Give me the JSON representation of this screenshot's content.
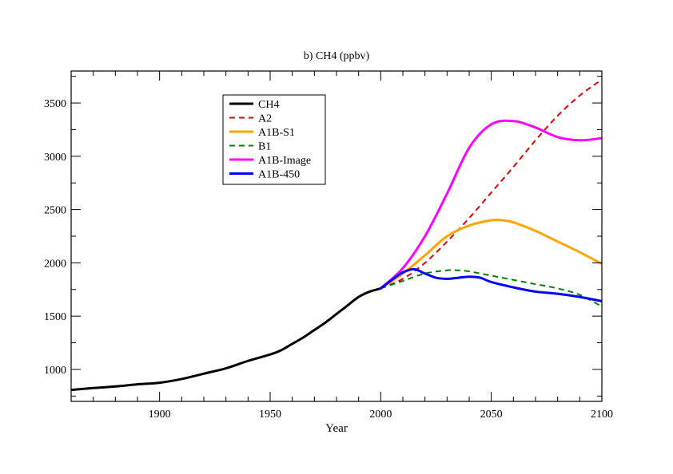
{
  "chart_data": {
    "type": "line",
    "title": "b) CH4 (ppbv)",
    "xlabel": "Year",
    "ylabel": "",
    "xlim": [
      1860,
      2100
    ],
    "ylim": [
      700,
      3800
    ],
    "xticks": [
      1900,
      1950,
      2000,
      2050,
      2100
    ],
    "yticks": [
      1000,
      1500,
      2000,
      2500,
      3000,
      3500
    ],
    "grid": false,
    "legend_position": "top-left",
    "series": [
      {
        "name": "CH4",
        "color": "#000000",
        "dash": "solid",
        "width": 3,
        "x": [
          1860,
          1870,
          1880,
          1890,
          1900,
          1910,
          1920,
          1930,
          1940,
          1950,
          1955,
          1960,
          1965,
          1970,
          1975,
          1980,
          1985,
          1990,
          1995,
          2000
        ],
        "y": [
          808,
          825,
          840,
          860,
          875,
          910,
          960,
          1010,
          1080,
          1140,
          1180,
          1240,
          1300,
          1370,
          1440,
          1520,
          1600,
          1680,
          1730,
          1760
        ]
      },
      {
        "name": "A2",
        "color": "#e00000",
        "dash": "dashed",
        "width": 2,
        "x": [
          2000,
          2010,
          2020,
          2030,
          2040,
          2050,
          2060,
          2070,
          2080,
          2090,
          2100
        ],
        "y": [
          1760,
          1850,
          2000,
          2200,
          2420,
          2660,
          2900,
          3150,
          3380,
          3570,
          3720
        ]
      },
      {
        "name": "A1B-S1",
        "color": "#ffa500",
        "dash": "solid",
        "width": 3,
        "x": [
          2000,
          2010,
          2020,
          2030,
          2040,
          2050,
          2055,
          2060,
          2070,
          2080,
          2090,
          2100
        ],
        "y": [
          1760,
          1900,
          2070,
          2250,
          2350,
          2400,
          2400,
          2380,
          2300,
          2200,
          2100,
          1990
        ]
      },
      {
        "name": "B1",
        "color": "#008000",
        "dash": "dashed",
        "width": 2,
        "x": [
          2000,
          2010,
          2020,
          2030,
          2035,
          2040,
          2050,
          2060,
          2070,
          2080,
          2090,
          2100
        ],
        "y": [
          1760,
          1830,
          1900,
          1930,
          1930,
          1920,
          1880,
          1840,
          1800,
          1760,
          1700,
          1590
        ]
      },
      {
        "name": "A1B-Image",
        "color": "#ff00ff",
        "dash": "solid",
        "width": 3,
        "x": [
          2000,
          2010,
          2020,
          2030,
          2040,
          2050,
          2060,
          2070,
          2080,
          2090,
          2100
        ],
        "y": [
          1760,
          1950,
          2250,
          2650,
          3080,
          3300,
          3330,
          3270,
          3180,
          3150,
          3170
        ]
      },
      {
        "name": "A1B-450",
        "color": "#0000ff",
        "dash": "solid",
        "width": 3,
        "x": [
          2000,
          2005,
          2010,
          2015,
          2020,
          2025,
          2030,
          2035,
          2040,
          2045,
          2050,
          2060,
          2070,
          2080,
          2090,
          2100
        ],
        "y": [
          1760,
          1840,
          1910,
          1940,
          1900,
          1860,
          1850,
          1860,
          1870,
          1860,
          1820,
          1770,
          1730,
          1710,
          1680,
          1640
        ]
      }
    ]
  }
}
